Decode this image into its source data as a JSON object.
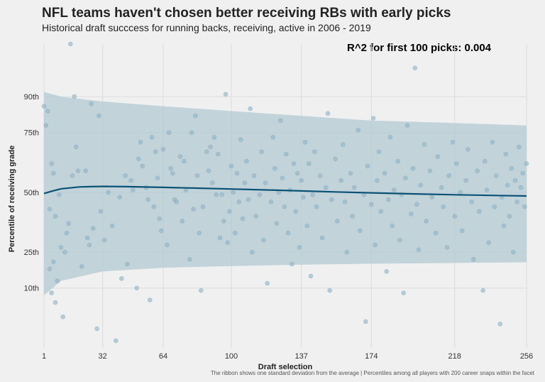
{
  "chart_data": {
    "type": "scatter",
    "title": "NFL teams haven't chosen better receiving RBs with early picks",
    "subtitle": "Historical draft succcess for running backs, receiving, active in 2006 - 2019",
    "annotation": "R^2 for first 100 picks: 0.004",
    "xlabel": "Draft selection",
    "ylabel": "Percentile of receiving grade",
    "caption": "The ribbon shows one standard deviation from the average | Percentiles among all players with 200 career snaps within the facet",
    "xlim": [
      1,
      256
    ],
    "ylim": [
      -15,
      112
    ],
    "x_ticks": [
      1,
      32,
      64,
      100,
      137,
      174,
      218,
      256
    ],
    "x_tick_labels": [
      "1",
      "32",
      "64",
      "100",
      "137",
      "174",
      "218",
      "256"
    ],
    "y_ticks": [
      10,
      25,
      50,
      75,
      90
    ],
    "y_tick_labels": [
      "10th",
      "25th",
      "50th",
      "75th",
      "90th"
    ],
    "grid": true,
    "colors": {
      "points": "#8fb3c4",
      "trend": "#0b5276",
      "ribbon": "#b3c9d3",
      "background": "#f0f0f0"
    },
    "trend": {
      "x": [
        1,
        5,
        10,
        20,
        32,
        45,
        64,
        80,
        100,
        120,
        137,
        155,
        174,
        195,
        218,
        240,
        256
      ],
      "y": [
        49.5,
        50.5,
        51.5,
        52.3,
        52.5,
        52.4,
        52.1,
        51.8,
        51.4,
        51.0,
        50.6,
        50.2,
        49.8,
        49.4,
        49.0,
        48.7,
        48.5
      ]
    },
    "ribbon": {
      "x": [
        1,
        10,
        32,
        64,
        100,
        137,
        174,
        218,
        256
      ],
      "upper": [
        92,
        90,
        88,
        86,
        84,
        82,
        80,
        79,
        78
      ],
      "lower": [
        7,
        13,
        17,
        18.5,
        19.2,
        19.8,
        20.2,
        20.5,
        20.8
      ]
    },
    "points": [
      {
        "x": 1,
        "y": 86
      },
      {
        "x": 2,
        "y": 78
      },
      {
        "x": 3,
        "y": 84
      },
      {
        "x": 4,
        "y": 43
      },
      {
        "x": 4,
        "y": 18
      },
      {
        "x": 5,
        "y": 62
      },
      {
        "x": 5,
        "y": 8
      },
      {
        "x": 6,
        "y": 21
      },
      {
        "x": 6,
        "y": 58
      },
      {
        "x": 7,
        "y": 40
      },
      {
        "x": 7,
        "y": 4
      },
      {
        "x": 8,
        "y": 13
      },
      {
        "x": 9,
        "y": 49
      },
      {
        "x": 10,
        "y": 27
      },
      {
        "x": 11,
        "y": -2
      },
      {
        "x": 12,
        "y": 25
      },
      {
        "x": 13,
        "y": 33
      },
      {
        "x": 14,
        "y": 37
      },
      {
        "x": 15,
        "y": 112
      },
      {
        "x": 16,
        "y": 57
      },
      {
        "x": 17,
        "y": 90
      },
      {
        "x": 18,
        "y": 69
      },
      {
        "x": 19,
        "y": 59
      },
      {
        "x": 21,
        "y": 19
      },
      {
        "x": 23,
        "y": 59
      },
      {
        "x": 24,
        "y": 31
      },
      {
        "x": 25,
        "y": 28
      },
      {
        "x": 26,
        "y": 87
      },
      {
        "x": 27,
        "y": 35
      },
      {
        "x": 29,
        "y": -7
      },
      {
        "x": 30,
        "y": 82
      },
      {
        "x": 31,
        "y": 42
      },
      {
        "x": 33,
        "y": 30
      },
      {
        "x": 35,
        "y": 50
      },
      {
        "x": 37,
        "y": 36
      },
      {
        "x": 39,
        "y": -12
      },
      {
        "x": 41,
        "y": 48
      },
      {
        "x": 42,
        "y": 14
      },
      {
        "x": 44,
        "y": 57
      },
      {
        "x": 45,
        "y": 20
      },
      {
        "x": 47,
        "y": 55
      },
      {
        "x": 48,
        "y": 51
      },
      {
        "x": 50,
        "y": 10
      },
      {
        "x": 51,
        "y": 64
      },
      {
        "x": 52,
        "y": 71
      },
      {
        "x": 53,
        "y": 61
      },
      {
        "x": 55,
        "y": 52
      },
      {
        "x": 56,
        "y": 47
      },
      {
        "x": 57,
        "y": 5
      },
      {
        "x": 58,
        "y": 73
      },
      {
        "x": 59,
        "y": 44
      },
      {
        "x": 60,
        "y": 67
      },
      {
        "x": 61,
        "y": 56
      },
      {
        "x": 62,
        "y": 39
      },
      {
        "x": 63,
        "y": 34
      },
      {
        "x": 64,
        "y": 68
      },
      {
        "x": 66,
        "y": 28
      },
      {
        "x": 67,
        "y": 75
      },
      {
        "x": 68,
        "y": 60
      },
      {
        "x": 69,
        "y": 58
      },
      {
        "x": 70,
        "y": 47
      },
      {
        "x": 71,
        "y": 46
      },
      {
        "x": 73,
        "y": 65
      },
      {
        "x": 74,
        "y": 38
      },
      {
        "x": 75,
        "y": 63
      },
      {
        "x": 76,
        "y": 51
      },
      {
        "x": 78,
        "y": 22
      },
      {
        "x": 79,
        "y": 75
      },
      {
        "x": 80,
        "y": 43
      },
      {
        "x": 81,
        "y": 82
      },
      {
        "x": 82,
        "y": 57
      },
      {
        "x": 83,
        "y": 33
      },
      {
        "x": 84,
        "y": 9
      },
      {
        "x": 85,
        "y": 44
      },
      {
        "x": 87,
        "y": 67
      },
      {
        "x": 88,
        "y": 59
      },
      {
        "x": 89,
        "y": 69
      },
      {
        "x": 90,
        "y": 54
      },
      {
        "x": 91,
        "y": 73
      },
      {
        "x": 92,
        "y": 49
      },
      {
        "x": 93,
        "y": 66
      },
      {
        "x": 94,
        "y": 31
      },
      {
        "x": 95,
        "y": 49
      },
      {
        "x": 96,
        "y": 38
      },
      {
        "x": 97,
        "y": 91
      },
      {
        "x": 98,
        "y": 29
      },
      {
        "x": 99,
        "y": 42
      },
      {
        "x": 100,
        "y": 61
      },
      {
        "x": 101,
        "y": 50
      },
      {
        "x": 102,
        "y": 33
      },
      {
        "x": 103,
        "y": 58
      },
      {
        "x": 104,
        "y": 46
      },
      {
        "x": 105,
        "y": 72
      },
      {
        "x": 106,
        "y": 39
      },
      {
        "x": 107,
        "y": 54
      },
      {
        "x": 108,
        "y": 63
      },
      {
        "x": 109,
        "y": 47
      },
      {
        "x": 110,
        "y": 85
      },
      {
        "x": 111,
        "y": 25
      },
      {
        "x": 112,
        "y": 57
      },
      {
        "x": 113,
        "y": 40
      },
      {
        "x": 115,
        "y": 49
      },
      {
        "x": 116,
        "y": 67
      },
      {
        "x": 117,
        "y": 30
      },
      {
        "x": 118,
        "y": 54
      },
      {
        "x": 119,
        "y": 12
      },
      {
        "x": 121,
        "y": 46
      },
      {
        "x": 122,
        "y": 73
      },
      {
        "x": 123,
        "y": 60
      },
      {
        "x": 124,
        "y": 37
      },
      {
        "x": 125,
        "y": 50
      },
      {
        "x": 126,
        "y": 80
      },
      {
        "x": 127,
        "y": 56
      },
      {
        "x": 128,
        "y": 44
      },
      {
        "x": 129,
        "y": 66
      },
      {
        "x": 130,
        "y": 33
      },
      {
        "x": 131,
        "y": 51
      },
      {
        "x": 132,
        "y": 20
      },
      {
        "x": 133,
        "y": 62
      },
      {
        "x": 134,
        "y": 42
      },
      {
        "x": 135,
        "y": 58
      },
      {
        "x": 136,
        "y": 27
      },
      {
        "x": 137,
        "y": 55
      },
      {
        "x": 138,
        "y": 48
      },
      {
        "x": 139,
        "y": 71
      },
      {
        "x": 140,
        "y": 36
      },
      {
        "x": 141,
        "y": 62
      },
      {
        "x": 142,
        "y": 15
      },
      {
        "x": 143,
        "y": 49
      },
      {
        "x": 144,
        "y": 67
      },
      {
        "x": 145,
        "y": 44
      },
      {
        "x": 147,
        "y": 57
      },
      {
        "x": 148,
        "y": 31
      },
      {
        "x": 150,
        "y": 52
      },
      {
        "x": 151,
        "y": 83
      },
      {
        "x": 152,
        "y": 9
      },
      {
        "x": 153,
        "y": 47
      },
      {
        "x": 155,
        "y": 64
      },
      {
        "x": 156,
        "y": 38
      },
      {
        "x": 158,
        "y": 55
      },
      {
        "x": 159,
        "y": 70
      },
      {
        "x": 160,
        "y": 46
      },
      {
        "x": 161,
        "y": 25
      },
      {
        "x": 163,
        "y": 58
      },
      {
        "x": 164,
        "y": 40
      },
      {
        "x": 165,
        "y": 52
      },
      {
        "x": 167,
        "y": 76
      },
      {
        "x": 168,
        "y": 34
      },
      {
        "x": 170,
        "y": 49
      },
      {
        "x": 171,
        "y": -4
      },
      {
        "x": 172,
        "y": 61
      },
      {
        "x": 174,
        "y": 45
      },
      {
        "x": 175,
        "y": 81
      },
      {
        "x": 176,
        "y": 28
      },
      {
        "x": 177,
        "y": 55
      },
      {
        "x": 178,
        "y": 67
      },
      {
        "x": 179,
        "y": 42
      },
      {
        "x": 181,
        "y": 58
      },
      {
        "x": 182,
        "y": 17
      },
      {
        "x": 183,
        "y": 47
      },
      {
        "x": 184,
        "y": 73
      },
      {
        "x": 185,
        "y": 36
      },
      {
        "x": 186,
        "y": 51
      },
      {
        "x": 188,
        "y": 63
      },
      {
        "x": 189,
        "y": 30
      },
      {
        "x": 190,
        "y": 49
      },
      {
        "x": 191,
        "y": 8
      },
      {
        "x": 192,
        "y": 56
      },
      {
        "x": 193,
        "y": 78
      },
      {
        "x": 195,
        "y": 41
      },
      {
        "x": 196,
        "y": 60
      },
      {
        "x": 197,
        "y": 102
      },
      {
        "x": 198,
        "y": 45
      },
      {
        "x": 199,
        "y": 26
      },
      {
        "x": 200,
        "y": 53
      },
      {
        "x": 202,
        "y": 70
      },
      {
        "x": 203,
        "y": 38
      },
      {
        "x": 205,
        "y": 59
      },
      {
        "x": 206,
        "y": 48
      },
      {
        "x": 208,
        "y": 33
      },
      {
        "x": 209,
        "y": 65
      },
      {
        "x": 211,
        "y": 52
      },
      {
        "x": 212,
        "y": 44
      },
      {
        "x": 214,
        "y": 27
      },
      {
        "x": 215,
        "y": 57
      },
      {
        "x": 217,
        "y": 71
      },
      {
        "x": 218,
        "y": 40
      },
      {
        "x": 219,
        "y": 62
      },
      {
        "x": 221,
        "y": 50
      },
      {
        "x": 222,
        "y": 34
      },
      {
        "x": 224,
        "y": 55
      },
      {
        "x": 225,
        "y": 68
      },
      {
        "x": 227,
        "y": 46
      },
      {
        "x": 228,
        "y": 22
      },
      {
        "x": 230,
        "y": 59
      },
      {
        "x": 231,
        "y": 42
      },
      {
        "x": 233,
        "y": 9
      },
      {
        "x": 234,
        "y": 63
      },
      {
        "x": 235,
        "y": 51
      },
      {
        "x": 236,
        "y": 29
      },
      {
        "x": 238,
        "y": 71
      },
      {
        "x": 239,
        "y": 44
      },
      {
        "x": 240,
        "y": 57
      },
      {
        "x": 242,
        "y": -5
      },
      {
        "x": 243,
        "y": 48
      },
      {
        "x": 244,
        "y": 36
      },
      {
        "x": 245,
        "y": 66
      },
      {
        "x": 246,
        "y": 53
      },
      {
        "x": 247,
        "y": 40
      },
      {
        "x": 248,
        "y": 60
      },
      {
        "x": 249,
        "y": 25
      },
      {
        "x": 250,
        "y": 55
      },
      {
        "x": 251,
        "y": 46
      },
      {
        "x": 252,
        "y": 69
      },
      {
        "x": 253,
        "y": 52
      },
      {
        "x": 254,
        "y": 58
      },
      {
        "x": 255,
        "y": 44
      },
      {
        "x": 256,
        "y": 62
      }
    ]
  }
}
